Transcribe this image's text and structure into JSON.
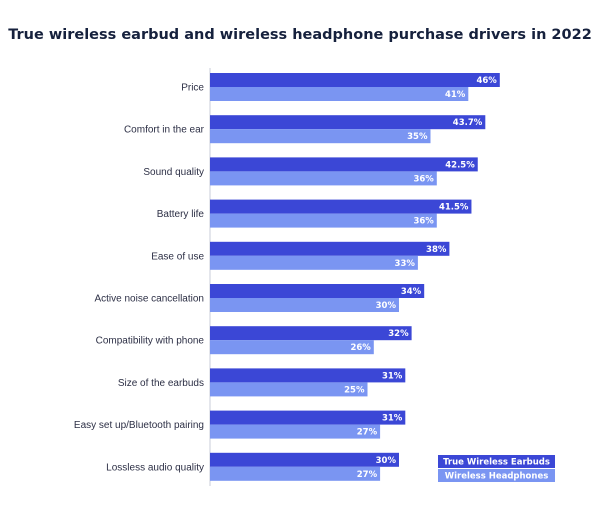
{
  "chart_data": {
    "type": "bar",
    "orientation": "horizontal",
    "title": "True wireless earbud and wireless headphone purchase drivers in 2022",
    "categories": [
      "Price",
      "Comfort in the ear",
      "Sound quality",
      "Battery life",
      "Ease of use",
      "Active noise cancellation",
      "Compatibility with phone",
      "Size of the earbuds",
      "Easy set up/Bluetooth pairing",
      "Lossless audio quality"
    ],
    "series": [
      {
        "name": "True Wireless Earbuds",
        "color": "#3b47d6",
        "values": [
          46,
          43.7,
          42.5,
          41.5,
          38,
          34,
          32,
          31,
          31,
          30
        ],
        "labels": [
          "46%",
          "43.7%",
          "42.5%",
          "41.5%",
          "38%",
          "34%",
          "32%",
          "31%",
          "31%",
          "30%"
        ]
      },
      {
        "name": "Wireless Headphones",
        "color": "#7a95f2",
        "values": [
          41,
          35,
          36,
          36,
          33,
          30,
          26,
          25,
          27,
          27
        ],
        "labels": [
          "41%",
          "35%",
          "36%",
          "36%",
          "33%",
          "30%",
          "26%",
          "25%",
          "27%",
          "27%"
        ]
      }
    ],
    "legend_position": "bottom-right",
    "grid": false
  }
}
